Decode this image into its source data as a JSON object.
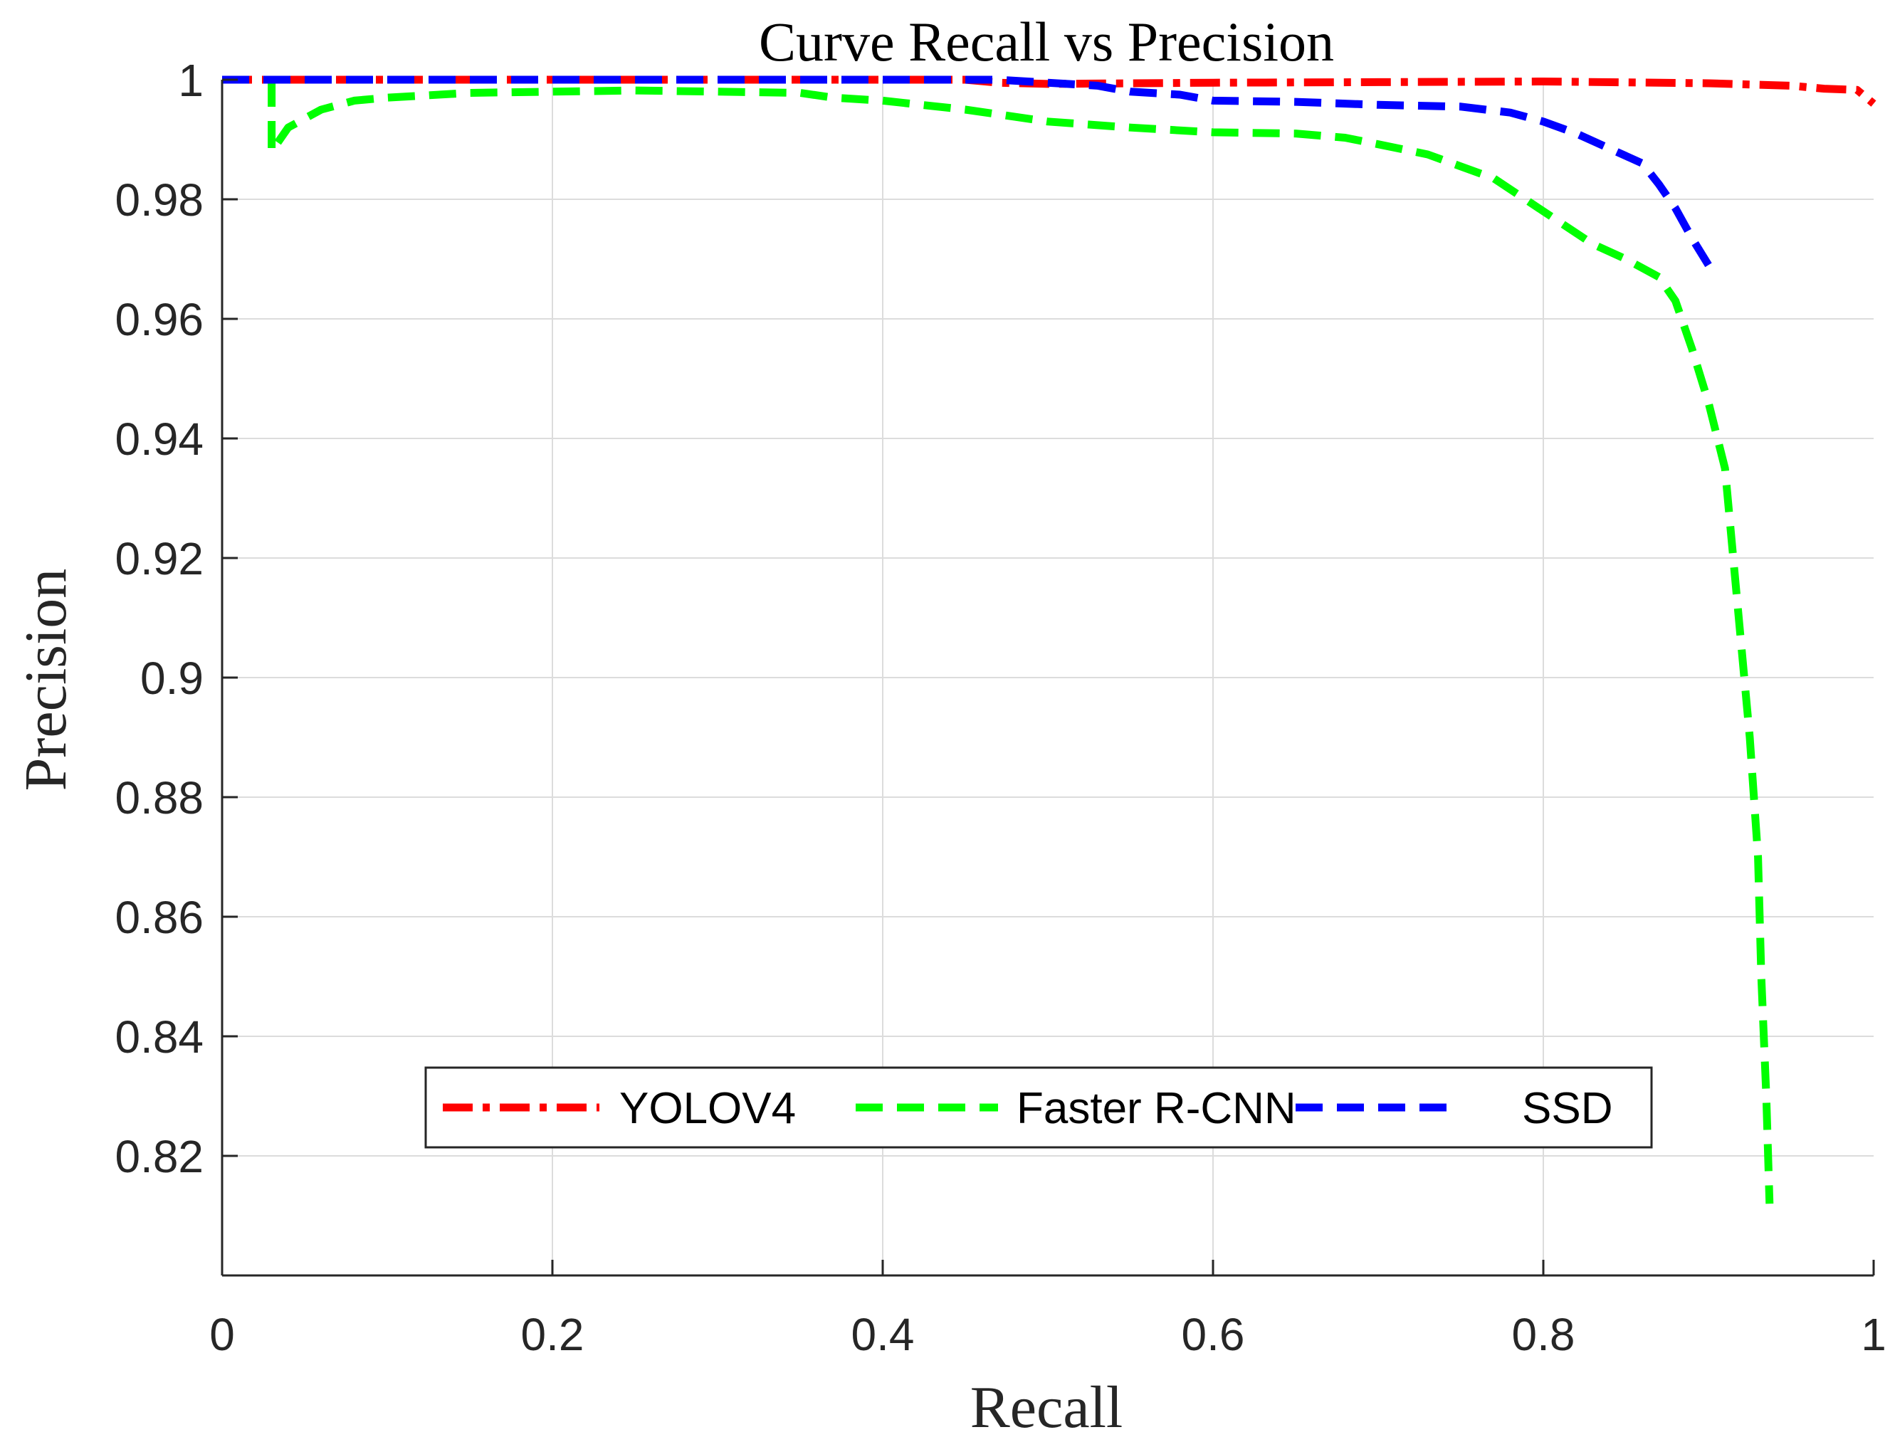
{
  "chart_data": {
    "type": "line",
    "title": "Curve Recall vs Precision",
    "xlabel": "Recall",
    "ylabel": "Precision",
    "xlim": [
      0,
      1
    ],
    "ylim": [
      0.8,
      1
    ],
    "xticks": [
      0,
      0.2,
      0.4,
      0.6,
      0.8,
      1
    ],
    "xtick_labels": [
      "0",
      "0.2",
      "0.4",
      "0.6",
      "0.8",
      "1"
    ],
    "yticks": [
      0.82,
      0.84,
      0.86,
      0.88,
      0.9,
      0.92,
      0.94,
      0.96,
      0.98,
      1
    ],
    "ytick_labels": [
      "0.82",
      "0.84",
      "0.86",
      "0.88",
      "0.9",
      "0.92",
      "0.94",
      "0.96",
      "0.98",
      "1"
    ],
    "grid": true,
    "legend_position": "bottom-center",
    "series": [
      {
        "name": "YOLOV4",
        "color": "#ff0000",
        "style": "dash-dot",
        "x": [
          0,
          0.1,
          0.2,
          0.3,
          0.4,
          0.45,
          0.47,
          0.5,
          0.6,
          0.7,
          0.8,
          0.9,
          0.95,
          0.97,
          0.99,
          1.0
        ],
        "y": [
          1.0,
          1.0,
          1.0,
          1.0,
          1.0,
          1.0,
          0.9995,
          0.9993,
          0.9995,
          0.9996,
          0.9997,
          0.9994,
          0.999,
          0.9985,
          0.9983,
          0.996
        ]
      },
      {
        "name": "Faster R-CNN",
        "color": "#00ff00",
        "style": "dashed",
        "x": [
          0.03,
          0.03,
          0.04,
          0.06,
          0.08,
          0.1,
          0.15,
          0.2,
          0.25,
          0.3,
          0.35,
          0.37,
          0.4,
          0.45,
          0.5,
          0.55,
          0.6,
          0.65,
          0.68,
          0.7,
          0.73,
          0.75,
          0.77,
          0.8,
          0.83,
          0.85,
          0.87,
          0.88,
          0.89,
          0.9,
          0.91,
          0.915,
          0.92,
          0.925,
          0.93,
          0.932,
          0.935,
          0.937
        ],
        "y": [
          1.0,
          0.988,
          0.992,
          0.995,
          0.9965,
          0.997,
          0.9978,
          0.998,
          0.9982,
          0.998,
          0.9978,
          0.997,
          0.9965,
          0.995,
          0.993,
          0.992,
          0.9912,
          0.991,
          0.9903,
          0.9892,
          0.9875,
          0.9855,
          0.9835,
          0.978,
          0.9725,
          0.97,
          0.967,
          0.963,
          0.955,
          0.946,
          0.935,
          0.92,
          0.905,
          0.89,
          0.87,
          0.85,
          0.83,
          0.812
        ]
      },
      {
        "name": "SSD",
        "color": "#0000ff",
        "style": "dashed",
        "x": [
          0,
          0.1,
          0.2,
          0.3,
          0.4,
          0.47,
          0.5,
          0.53,
          0.55,
          0.58,
          0.6,
          0.65,
          0.7,
          0.75,
          0.78,
          0.8,
          0.82,
          0.84,
          0.86,
          0.87,
          0.88,
          0.89,
          0.9
        ],
        "y": [
          1.0,
          1.0,
          1.0,
          1.0,
          1.0,
          1.0,
          0.9995,
          0.999,
          0.998,
          0.9975,
          0.9965,
          0.9963,
          0.9958,
          0.9955,
          0.9945,
          0.993,
          0.991,
          0.9885,
          0.986,
          0.9825,
          0.9785,
          0.9735,
          0.969
        ]
      }
    ]
  }
}
